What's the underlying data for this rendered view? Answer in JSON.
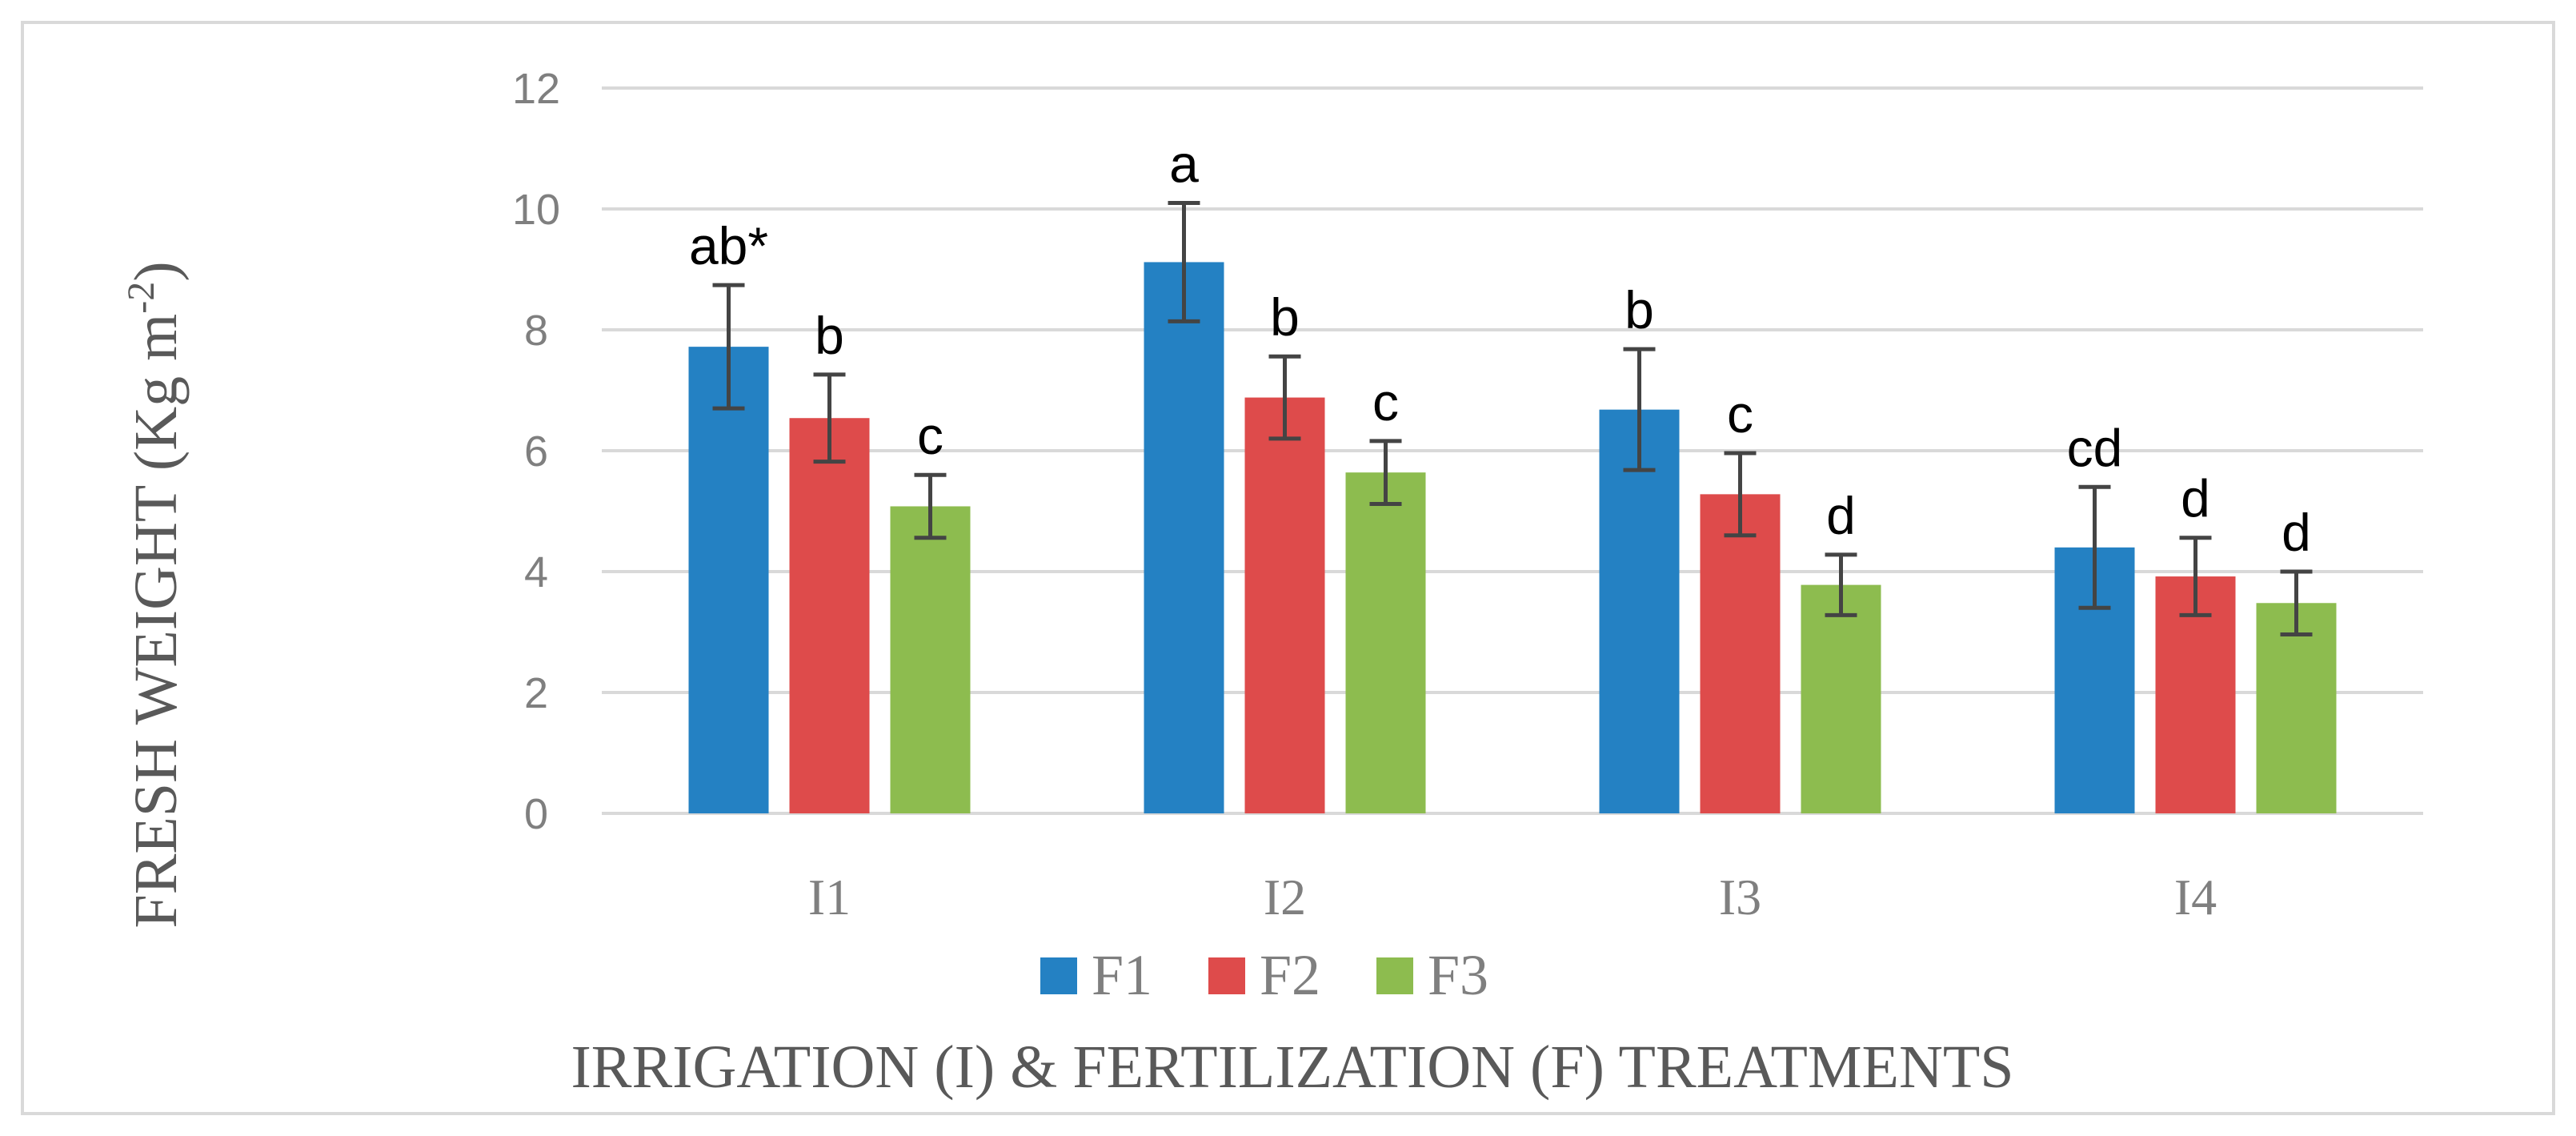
{
  "chart_data": {
    "type": "bar",
    "title": "",
    "xlabel": "IRRIGATION (I) & FERTILIZATION (F) TREATMENTS",
    "ylabel": {
      "main": "FRESH WEIGHT (Kg m",
      "superscript": "-2",
      "suffix": ")"
    },
    "categories": [
      "I1",
      "I2",
      "I3",
      "I4"
    ],
    "ylim": [
      0,
      12
    ],
    "yticks": [
      0,
      2,
      4,
      6,
      8,
      10,
      12
    ],
    "grid": true,
    "legend_position": "bottom",
    "series": [
      {
        "name": "F1",
        "color": "#2481c3",
        "values": [
          7.72,
          9.12,
          6.68,
          4.4
        ],
        "errors": [
          1.02,
          0.98,
          1.0,
          1.0
        ],
        "labels": [
          "ab*",
          "a",
          "b",
          "cd"
        ]
      },
      {
        "name": "F2",
        "color": "#de4b4b",
        "values": [
          6.54,
          6.88,
          5.28,
          3.92
        ],
        "errors": [
          0.72,
          0.68,
          0.68,
          0.64
        ],
        "labels": [
          "b",
          "b",
          "c",
          "d"
        ]
      },
      {
        "name": "F3",
        "color": "#8dbc4f",
        "values": [
          5.08,
          5.64,
          3.78,
          3.48
        ],
        "errors": [
          0.52,
          0.52,
          0.5,
          0.52
        ],
        "labels": [
          "c",
          "c",
          "d",
          "d"
        ]
      }
    ]
  }
}
